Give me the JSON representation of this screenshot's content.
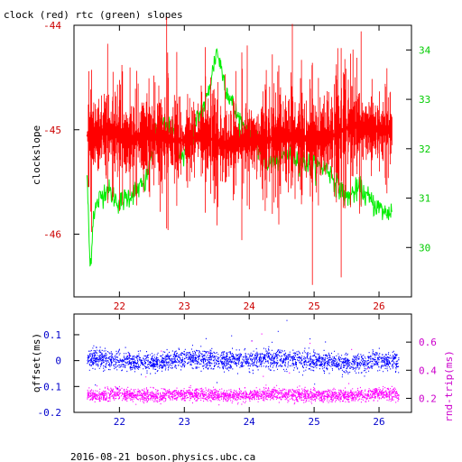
{
  "colors": {
    "clock": "#ff0000",
    "rtc": "#00ee00",
    "offset": "#0000ff",
    "rtt": "#ff00ff",
    "axis_left_top": "#cc0000",
    "axis_right_top": "#00cc00",
    "axis_left_bottom": "#0000cc",
    "axis_right_bottom": "#cc00cc",
    "frame": "#000000"
  },
  "footer": "2016-08-21 boson.physics.ubc.ca",
  "chart_data": [
    {
      "type": "line",
      "title": "clock (red) rtc (green) slopes",
      "ylabel": "clockslope",
      "xlim": [
        21.3,
        26.5
      ],
      "ylim": [
        -46.6,
        -44.0
      ],
      "xticks": [
        22,
        23,
        24,
        25,
        26
      ],
      "yticks": [
        -44,
        -45,
        -46
      ],
      "y2lim": [
        29.0,
        34.5
      ],
      "y2ticks": [
        30,
        31,
        32,
        33,
        34
      ],
      "grid": false,
      "series": [
        {
          "name": "clock",
          "axis": "left",
          "color": "#ff0000",
          "x": [
            21.5,
            21.6,
            21.7,
            21.8,
            22.0,
            22.2,
            22.5,
            22.8,
            23.0,
            23.3,
            23.6,
            24.0,
            24.3,
            24.6,
            25.0,
            25.3,
            25.6,
            25.9,
            26.2
          ],
          "y": [
            -45.05,
            -45.1,
            -45.05,
            -45.0,
            -45.05,
            -45.1,
            -45.05,
            -45.1,
            -45.1,
            -45.05,
            -45.15,
            -45.1,
            -45.1,
            -45.05,
            -45.1,
            -45.05,
            -44.95,
            -45.0,
            -45.0
          ]
        },
        {
          "name": "rtc",
          "axis": "right",
          "color": "#00ee00",
          "x": [
            21.5,
            21.55,
            21.6,
            21.7,
            21.8,
            22.0,
            22.2,
            22.4,
            22.6,
            22.8,
            23.0,
            23.2,
            23.35,
            23.5,
            23.65,
            23.8,
            24.0,
            24.3,
            24.6,
            24.9,
            25.2,
            25.5,
            25.7,
            25.9,
            26.1,
            26.3
          ],
          "y": [
            31.5,
            29.5,
            30.7,
            31.0,
            31.2,
            30.9,
            31.1,
            31.3,
            32.5,
            32.4,
            31.8,
            32.6,
            33.0,
            34.0,
            33.2,
            32.7,
            32.3,
            31.7,
            31.9,
            31.7,
            31.6,
            31.0,
            31.2,
            30.9,
            30.7,
            30.8
          ]
        }
      ]
    },
    {
      "type": "scatter",
      "ylabel": "offset(ms)",
      "y2label": "rnd-trip(ms)",
      "xlim": [
        21.3,
        26.5
      ],
      "ylim": [
        -0.2,
        0.18
      ],
      "yticks": [
        0.1,
        0,
        -0.1,
        -0.2
      ],
      "y2lim": [
        0.1,
        0.8
      ],
      "y2ticks": [
        0.2,
        0.4,
        0.6
      ],
      "xticks": [
        22,
        23,
        24,
        25,
        26
      ],
      "grid": false,
      "series": [
        {
          "name": "offset",
          "axis": "left",
          "color": "#0000ff",
          "x": [
            21.5,
            22.0,
            22.5,
            23.0,
            23.5,
            24.0,
            24.5,
            25.0,
            25.5,
            26.0,
            26.3
          ],
          "y": [
            0.01,
            0.0,
            -0.01,
            0.01,
            0.0,
            0.0,
            0.01,
            0.0,
            -0.01,
            0.0,
            0.0
          ]
        },
        {
          "name": "rnd-trip",
          "axis": "right",
          "color": "#ff00ff",
          "x": [
            21.5,
            22.0,
            22.5,
            23.0,
            23.5,
            24.0,
            24.5,
            25.0,
            25.5,
            26.0,
            26.3
          ],
          "y": [
            0.22,
            0.23,
            0.22,
            0.23,
            0.22,
            0.22,
            0.23,
            0.22,
            0.22,
            0.23,
            0.22
          ]
        }
      ]
    }
  ]
}
